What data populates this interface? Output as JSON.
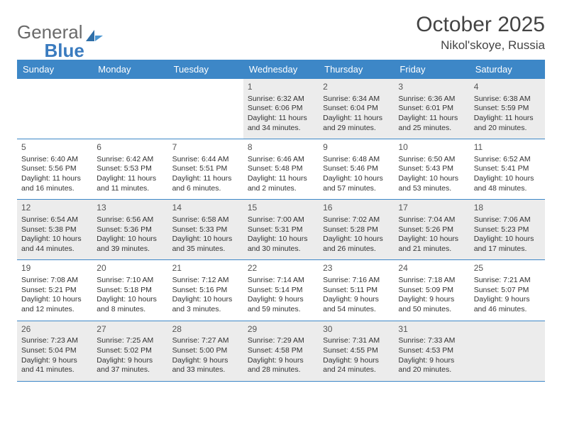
{
  "logo": {
    "text1": "General",
    "text2": "Blue"
  },
  "title": "October 2025",
  "subtitle": "Nikol'skoye, Russia",
  "colors": {
    "header_bg": "#3d87c7",
    "header_text": "#ffffff",
    "shade_bg": "#ececec",
    "border": "#3d87c7",
    "title_color": "#444444",
    "logo_gray": "#6a6a6a",
    "logo_blue": "#3a7bbf"
  },
  "dayNames": [
    "Sunday",
    "Monday",
    "Tuesday",
    "Wednesday",
    "Thursday",
    "Friday",
    "Saturday"
  ],
  "weeks": [
    [
      {
        "n": "",
        "sr": "",
        "ss": "",
        "dl": "",
        "sh": false
      },
      {
        "n": "",
        "sr": "",
        "ss": "",
        "dl": "",
        "sh": false
      },
      {
        "n": "",
        "sr": "",
        "ss": "",
        "dl": "",
        "sh": false
      },
      {
        "n": "1",
        "sr": "Sunrise: 6:32 AM",
        "ss": "Sunset: 6:06 PM",
        "dl": "Daylight: 11 hours and 34 minutes.",
        "sh": true
      },
      {
        "n": "2",
        "sr": "Sunrise: 6:34 AM",
        "ss": "Sunset: 6:04 PM",
        "dl": "Daylight: 11 hours and 29 minutes.",
        "sh": true
      },
      {
        "n": "3",
        "sr": "Sunrise: 6:36 AM",
        "ss": "Sunset: 6:01 PM",
        "dl": "Daylight: 11 hours and 25 minutes.",
        "sh": true
      },
      {
        "n": "4",
        "sr": "Sunrise: 6:38 AM",
        "ss": "Sunset: 5:59 PM",
        "dl": "Daylight: 11 hours and 20 minutes.",
        "sh": true
      }
    ],
    [
      {
        "n": "5",
        "sr": "Sunrise: 6:40 AM",
        "ss": "Sunset: 5:56 PM",
        "dl": "Daylight: 11 hours and 16 minutes.",
        "sh": false
      },
      {
        "n": "6",
        "sr": "Sunrise: 6:42 AM",
        "ss": "Sunset: 5:53 PM",
        "dl": "Daylight: 11 hours and 11 minutes.",
        "sh": false
      },
      {
        "n": "7",
        "sr": "Sunrise: 6:44 AM",
        "ss": "Sunset: 5:51 PM",
        "dl": "Daylight: 11 hours and 6 minutes.",
        "sh": false
      },
      {
        "n": "8",
        "sr": "Sunrise: 6:46 AM",
        "ss": "Sunset: 5:48 PM",
        "dl": "Daylight: 11 hours and 2 minutes.",
        "sh": false
      },
      {
        "n": "9",
        "sr": "Sunrise: 6:48 AM",
        "ss": "Sunset: 5:46 PM",
        "dl": "Daylight: 10 hours and 57 minutes.",
        "sh": false
      },
      {
        "n": "10",
        "sr": "Sunrise: 6:50 AM",
        "ss": "Sunset: 5:43 PM",
        "dl": "Daylight: 10 hours and 53 minutes.",
        "sh": false
      },
      {
        "n": "11",
        "sr": "Sunrise: 6:52 AM",
        "ss": "Sunset: 5:41 PM",
        "dl": "Daylight: 10 hours and 48 minutes.",
        "sh": false
      }
    ],
    [
      {
        "n": "12",
        "sr": "Sunrise: 6:54 AM",
        "ss": "Sunset: 5:38 PM",
        "dl": "Daylight: 10 hours and 44 minutes.",
        "sh": true
      },
      {
        "n": "13",
        "sr": "Sunrise: 6:56 AM",
        "ss": "Sunset: 5:36 PM",
        "dl": "Daylight: 10 hours and 39 minutes.",
        "sh": true
      },
      {
        "n": "14",
        "sr": "Sunrise: 6:58 AM",
        "ss": "Sunset: 5:33 PM",
        "dl": "Daylight: 10 hours and 35 minutes.",
        "sh": true
      },
      {
        "n": "15",
        "sr": "Sunrise: 7:00 AM",
        "ss": "Sunset: 5:31 PM",
        "dl": "Daylight: 10 hours and 30 minutes.",
        "sh": true
      },
      {
        "n": "16",
        "sr": "Sunrise: 7:02 AM",
        "ss": "Sunset: 5:28 PM",
        "dl": "Daylight: 10 hours and 26 minutes.",
        "sh": true
      },
      {
        "n": "17",
        "sr": "Sunrise: 7:04 AM",
        "ss": "Sunset: 5:26 PM",
        "dl": "Daylight: 10 hours and 21 minutes.",
        "sh": true
      },
      {
        "n": "18",
        "sr": "Sunrise: 7:06 AM",
        "ss": "Sunset: 5:23 PM",
        "dl": "Daylight: 10 hours and 17 minutes.",
        "sh": true
      }
    ],
    [
      {
        "n": "19",
        "sr": "Sunrise: 7:08 AM",
        "ss": "Sunset: 5:21 PM",
        "dl": "Daylight: 10 hours and 12 minutes.",
        "sh": false
      },
      {
        "n": "20",
        "sr": "Sunrise: 7:10 AM",
        "ss": "Sunset: 5:18 PM",
        "dl": "Daylight: 10 hours and 8 minutes.",
        "sh": false
      },
      {
        "n": "21",
        "sr": "Sunrise: 7:12 AM",
        "ss": "Sunset: 5:16 PM",
        "dl": "Daylight: 10 hours and 3 minutes.",
        "sh": false
      },
      {
        "n": "22",
        "sr": "Sunrise: 7:14 AM",
        "ss": "Sunset: 5:14 PM",
        "dl": "Daylight: 9 hours and 59 minutes.",
        "sh": false
      },
      {
        "n": "23",
        "sr": "Sunrise: 7:16 AM",
        "ss": "Sunset: 5:11 PM",
        "dl": "Daylight: 9 hours and 54 minutes.",
        "sh": false
      },
      {
        "n": "24",
        "sr": "Sunrise: 7:18 AM",
        "ss": "Sunset: 5:09 PM",
        "dl": "Daylight: 9 hours and 50 minutes.",
        "sh": false
      },
      {
        "n": "25",
        "sr": "Sunrise: 7:21 AM",
        "ss": "Sunset: 5:07 PM",
        "dl": "Daylight: 9 hours and 46 minutes.",
        "sh": false
      }
    ],
    [
      {
        "n": "26",
        "sr": "Sunrise: 7:23 AM",
        "ss": "Sunset: 5:04 PM",
        "dl": "Daylight: 9 hours and 41 minutes.",
        "sh": true
      },
      {
        "n": "27",
        "sr": "Sunrise: 7:25 AM",
        "ss": "Sunset: 5:02 PM",
        "dl": "Daylight: 9 hours and 37 minutes.",
        "sh": true
      },
      {
        "n": "28",
        "sr": "Sunrise: 7:27 AM",
        "ss": "Sunset: 5:00 PM",
        "dl": "Daylight: 9 hours and 33 minutes.",
        "sh": true
      },
      {
        "n": "29",
        "sr": "Sunrise: 7:29 AM",
        "ss": "Sunset: 4:58 PM",
        "dl": "Daylight: 9 hours and 28 minutes.",
        "sh": true
      },
      {
        "n": "30",
        "sr": "Sunrise: 7:31 AM",
        "ss": "Sunset: 4:55 PM",
        "dl": "Daylight: 9 hours and 24 minutes.",
        "sh": true
      },
      {
        "n": "31",
        "sr": "Sunrise: 7:33 AM",
        "ss": "Sunset: 4:53 PM",
        "dl": "Daylight: 9 hours and 20 minutes.",
        "sh": true
      },
      {
        "n": "",
        "sr": "",
        "ss": "",
        "dl": "",
        "sh": true
      }
    ]
  ]
}
